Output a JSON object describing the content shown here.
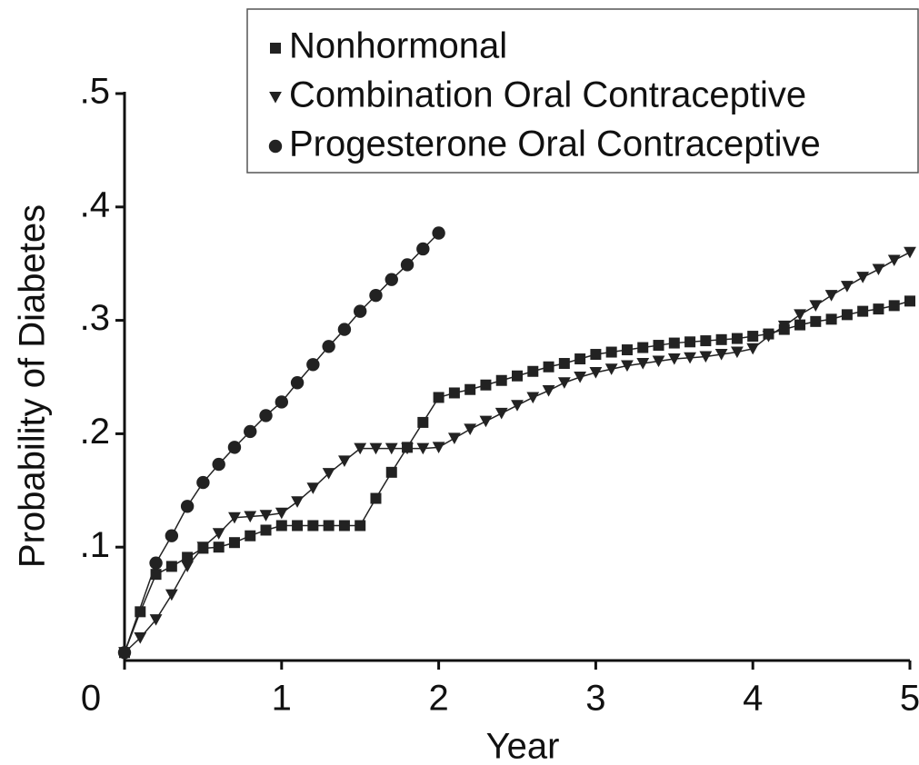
{
  "chart_data": {
    "type": "line",
    "xlabel": "Year",
    "ylabel": "Probability of Diabetes",
    "xlim": [
      0,
      5
    ],
    "xticks": [
      0,
      1,
      2,
      3,
      4,
      5
    ],
    "ylim": [
      0,
      0.5
    ],
    "yticks": [
      {
        "value": 0.1,
        "label": ".1"
      },
      {
        "value": 0.2,
        "label": ".2"
      },
      {
        "value": 0.3,
        "label": ".3"
      },
      {
        "value": 0.4,
        "label": ".4"
      },
      {
        "value": 0.5,
        "label": ".5"
      }
    ],
    "legend": "top-right",
    "series": [
      {
        "name": "Nonhormonal",
        "color": "#222222",
        "marker": "square",
        "x": [
          0,
          0.1,
          0.2,
          0.3,
          0.4,
          0.5,
          0.6,
          0.7,
          0.8,
          0.9,
          1,
          1.1,
          1.2,
          1.3,
          1.4,
          1.5,
          1.6,
          1.7,
          1.8,
          1.9,
          2,
          2.1,
          2.2,
          2.3,
          2.4,
          2.5,
          2.6,
          2.7,
          2.8,
          2.9,
          3,
          3.1,
          3.2,
          3.3,
          3.4,
          3.5,
          3.6,
          3.7,
          3.8,
          3.9,
          4,
          4.1,
          4.2,
          4.3,
          4.4,
          4.5,
          4.6,
          4.7,
          4.8,
          4.9,
          5
        ],
        "values": [
          0.007,
          0.043,
          0.076,
          0.083,
          0.091,
          0.099,
          0.1,
          0.104,
          0.11,
          0.115,
          0.119,
          0.119,
          0.119,
          0.119,
          0.119,
          0.119,
          0.143,
          0.166,
          0.188,
          0.21,
          0.232,
          0.236,
          0.239,
          0.243,
          0.247,
          0.251,
          0.255,
          0.259,
          0.262,
          0.266,
          0.27,
          0.272,
          0.274,
          0.276,
          0.278,
          0.28,
          0.281,
          0.282,
          0.283,
          0.284,
          0.286,
          0.288,
          0.292,
          0.296,
          0.299,
          0.301,
          0.305,
          0.308,
          0.31,
          0.313,
          0.317
        ]
      },
      {
        "name": "Combination Oral Contraceptive",
        "color": "#222222",
        "marker": "triangle",
        "x": [
          0,
          0.1,
          0.2,
          0.3,
          0.4,
          0.5,
          0.6,
          0.7,
          0.8,
          0.9,
          1,
          1.1,
          1.2,
          1.3,
          1.4,
          1.5,
          1.6,
          1.7,
          1.8,
          1.9,
          2,
          2.1,
          2.2,
          2.3,
          2.4,
          2.5,
          2.6,
          2.7,
          2.8,
          2.9,
          3,
          3.1,
          3.2,
          3.3,
          3.4,
          3.5,
          3.6,
          3.7,
          3.8,
          3.9,
          4,
          4.1,
          4.2,
          4.3,
          4.4,
          4.5,
          4.6,
          4.7,
          4.8,
          4.9,
          5
        ],
        "values": [
          0.007,
          0.02,
          0.036,
          0.058,
          0.083,
          0.1,
          0.112,
          0.126,
          0.127,
          0.128,
          0.13,
          0.14,
          0.152,
          0.165,
          0.176,
          0.187,
          0.187,
          0.187,
          0.187,
          0.187,
          0.188,
          0.196,
          0.204,
          0.211,
          0.218,
          0.225,
          0.232,
          0.238,
          0.245,
          0.25,
          0.254,
          0.257,
          0.26,
          0.262,
          0.264,
          0.266,
          0.267,
          0.268,
          0.27,
          0.272,
          0.275,
          0.286,
          0.295,
          0.305,
          0.313,
          0.322,
          0.33,
          0.338,
          0.345,
          0.353,
          0.36
        ]
      },
      {
        "name": "Progesterone Oral Contraceptive",
        "color": "#222222",
        "marker": "circle",
        "x": [
          0,
          0.2,
          0.3,
          0.4,
          0.5,
          0.6,
          0.7,
          0.8,
          0.9,
          1,
          1.1,
          1.2,
          1.3,
          1.4,
          1.5,
          1.6,
          1.7,
          1.8,
          1.9,
          2
        ],
        "values": [
          0.007,
          0.086,
          0.11,
          0.136,
          0.157,
          0.173,
          0.188,
          0.202,
          0.216,
          0.228,
          0.245,
          0.261,
          0.277,
          0.292,
          0.308,
          0.322,
          0.336,
          0.349,
          0.363,
          0.377
        ]
      }
    ]
  }
}
